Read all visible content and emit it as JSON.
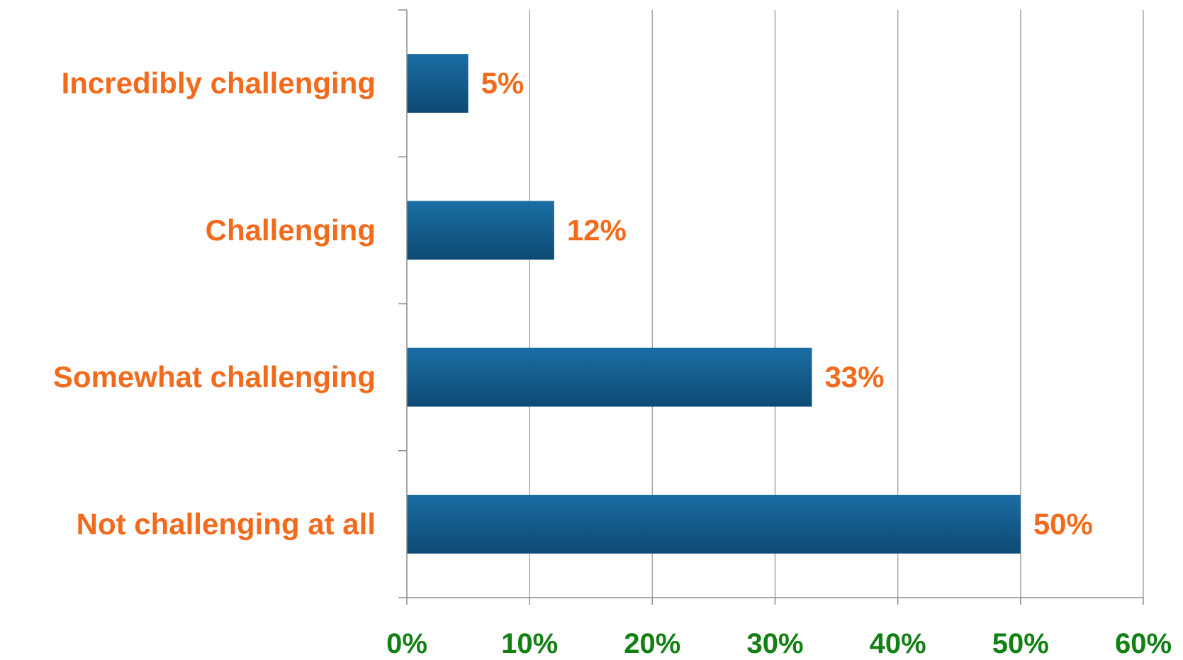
{
  "chart_data": {
    "type": "bar",
    "orientation": "horizontal",
    "categories": [
      "Incredibly challenging",
      "Challenging",
      "Somewhat challenging",
      "Not challenging at all"
    ],
    "values": [
      5,
      12,
      33,
      50
    ],
    "data_labels": [
      "5%",
      "12%",
      "33%",
      "50%"
    ],
    "xlim": [
      0,
      60
    ],
    "x_ticks": [
      0,
      10,
      20,
      30,
      40,
      50,
      60
    ],
    "x_tick_labels": [
      "0%",
      "10%",
      "20%",
      "30%",
      "40%",
      "50%",
      "60%"
    ],
    "title": "",
    "xlabel": "",
    "ylabel": "",
    "grid": "vertical",
    "legend": "none",
    "colors": {
      "bar_top": "#1a6ea3",
      "bar_bottom": "#0d4a74",
      "category_label": "#f26b1d",
      "data_label": "#f26b1d",
      "tick_label": "#138013",
      "grid": "#a6a6a6",
      "axis": "#8c8c8c"
    }
  }
}
